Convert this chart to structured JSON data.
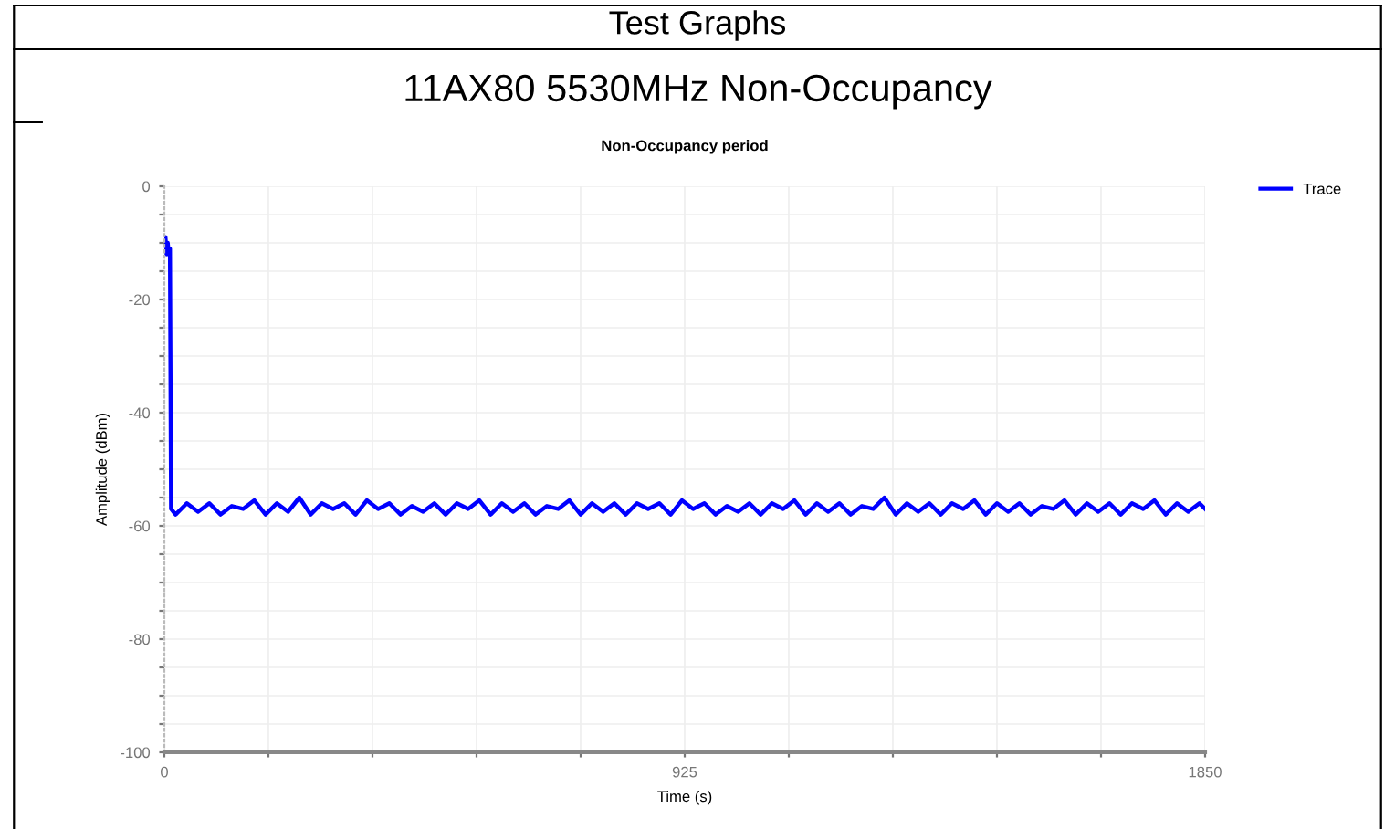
{
  "chart_data": {
    "type": "line",
    "title": "Non-Occupancy period",
    "subtitle": "11AX80 5530MHz Non-Occupancy",
    "annotations": [
      "Test Graphs"
    ],
    "xlabel": "Time (s)",
    "ylabel": "Amplitude (dBm)",
    "xlim": [
      0,
      1850
    ],
    "ylim": [
      -100,
      0
    ],
    "xticks": [
      0,
      {
        "value": 185,
        "label": null
      },
      {
        "value": 370,
        "label": null
      },
      {
        "value": 555,
        "label": null
      },
      {
        "value": 740,
        "label": null
      },
      925,
      {
        "value": 1110,
        "label": null
      },
      {
        "value": 1295,
        "label": null
      },
      {
        "value": 1480,
        "label": null
      },
      {
        "value": 1665,
        "label": null
      },
      1850
    ],
    "yticks": [
      -100,
      {
        "value": -95,
        "label": null
      },
      {
        "value": -90,
        "label": null
      },
      {
        "value": -85,
        "label": null
      },
      -80,
      {
        "value": -75,
        "label": null
      },
      {
        "value": -70,
        "label": null
      },
      {
        "value": -65,
        "label": null
      },
      -60,
      {
        "value": -55,
        "label": null
      },
      {
        "value": -50,
        "label": null
      },
      {
        "value": -45,
        "label": null
      },
      -40,
      {
        "value": -35,
        "label": null
      },
      {
        "value": -30,
        "label": null
      },
      {
        "value": -25,
        "label": null
      },
      -20,
      {
        "value": -15,
        "label": null
      },
      {
        "value": -10,
        "label": null
      },
      {
        "value": -5,
        "label": null
      },
      0
    ],
    "grid": true,
    "legend": "top right",
    "line_style": "solid",
    "series": [
      {
        "name": "Trace",
        "color": "#0000ff",
        "x": [
          0,
          2,
          4,
          6,
          8,
          10,
          12,
          20,
          40,
          60,
          80,
          100,
          120,
          140,
          160,
          180,
          200,
          220,
          240,
          260,
          280,
          300,
          320,
          340,
          360,
          380,
          400,
          420,
          440,
          460,
          480,
          500,
          520,
          540,
          560,
          580,
          600,
          620,
          640,
          660,
          680,
          700,
          720,
          740,
          760,
          780,
          800,
          820,
          840,
          860,
          880,
          900,
          920,
          940,
          960,
          980,
          1000,
          1020,
          1040,
          1060,
          1080,
          1100,
          1120,
          1140,
          1160,
          1180,
          1200,
          1220,
          1240,
          1260,
          1280,
          1300,
          1320,
          1340,
          1360,
          1380,
          1400,
          1420,
          1440,
          1460,
          1480,
          1500,
          1520,
          1540,
          1560,
          1580,
          1600,
          1620,
          1640,
          1660,
          1680,
          1700,
          1720,
          1740,
          1760,
          1780,
          1800,
          1820,
          1840,
          1850
        ],
        "values": [
          -11,
          -9,
          -12,
          -10,
          -12,
          -11,
          -57,
          -58,
          -56,
          -57.5,
          -56,
          -58,
          -56.5,
          -57,
          -55.5,
          -58,
          -56,
          -57.5,
          -55,
          -58,
          -56,
          -57,
          -56,
          -58,
          -55.5,
          -57,
          -56,
          -58,
          -56.5,
          -57.5,
          -56,
          -58,
          -56,
          -57,
          -55.5,
          -58,
          -56,
          -57.5,
          -56,
          -58,
          -56.5,
          -57,
          -55.5,
          -58,
          -56,
          -57.5,
          -56,
          -58,
          -56,
          -57,
          -56,
          -58,
          -55.5,
          -57,
          -56,
          -58,
          -56.5,
          -57.5,
          -56,
          -58,
          -56,
          -57,
          -55.5,
          -58,
          -56,
          -57.5,
          -56,
          -58,
          -56.5,
          -57,
          -55,
          -58,
          -56,
          -57.5,
          -56,
          -58,
          -56,
          -57,
          -55.5,
          -58,
          -56,
          -57.5,
          -56,
          -58,
          -56.5,
          -57,
          -55.5,
          -58,
          -56,
          -57.5,
          -56,
          -58,
          -56,
          -57,
          -55.5,
          -58,
          -56,
          -57.5,
          -56,
          -57
        ]
      }
    ]
  }
}
